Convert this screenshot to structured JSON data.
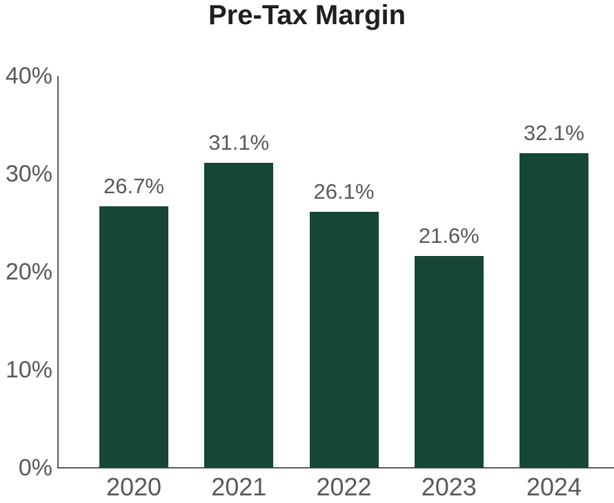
{
  "chart_data": {
    "type": "bar",
    "title": "Pre-Tax Margin",
    "categories": [
      "2020",
      "2021",
      "2022",
      "2023",
      "2024"
    ],
    "values": [
      26.7,
      31.1,
      26.1,
      21.6,
      32.1
    ],
    "value_labels": [
      "26.7%",
      "31.1%",
      "26.1%",
      "21.6%",
      "32.1%"
    ],
    "xlabel": "",
    "ylabel": "",
    "ylim": [
      0,
      40
    ],
    "ytick_values": [
      0,
      10,
      20,
      30,
      40
    ],
    "ytick_labels": [
      "0%",
      "10%",
      "20%",
      "30%",
      "40%"
    ],
    "grid": false,
    "legend": "none",
    "colors": {
      "bar": "#154734",
      "axis": "#595959",
      "tick_text": "#595959",
      "value_text": "#595959",
      "title_text": "#1f1f1f",
      "background": "#ffffff"
    }
  }
}
